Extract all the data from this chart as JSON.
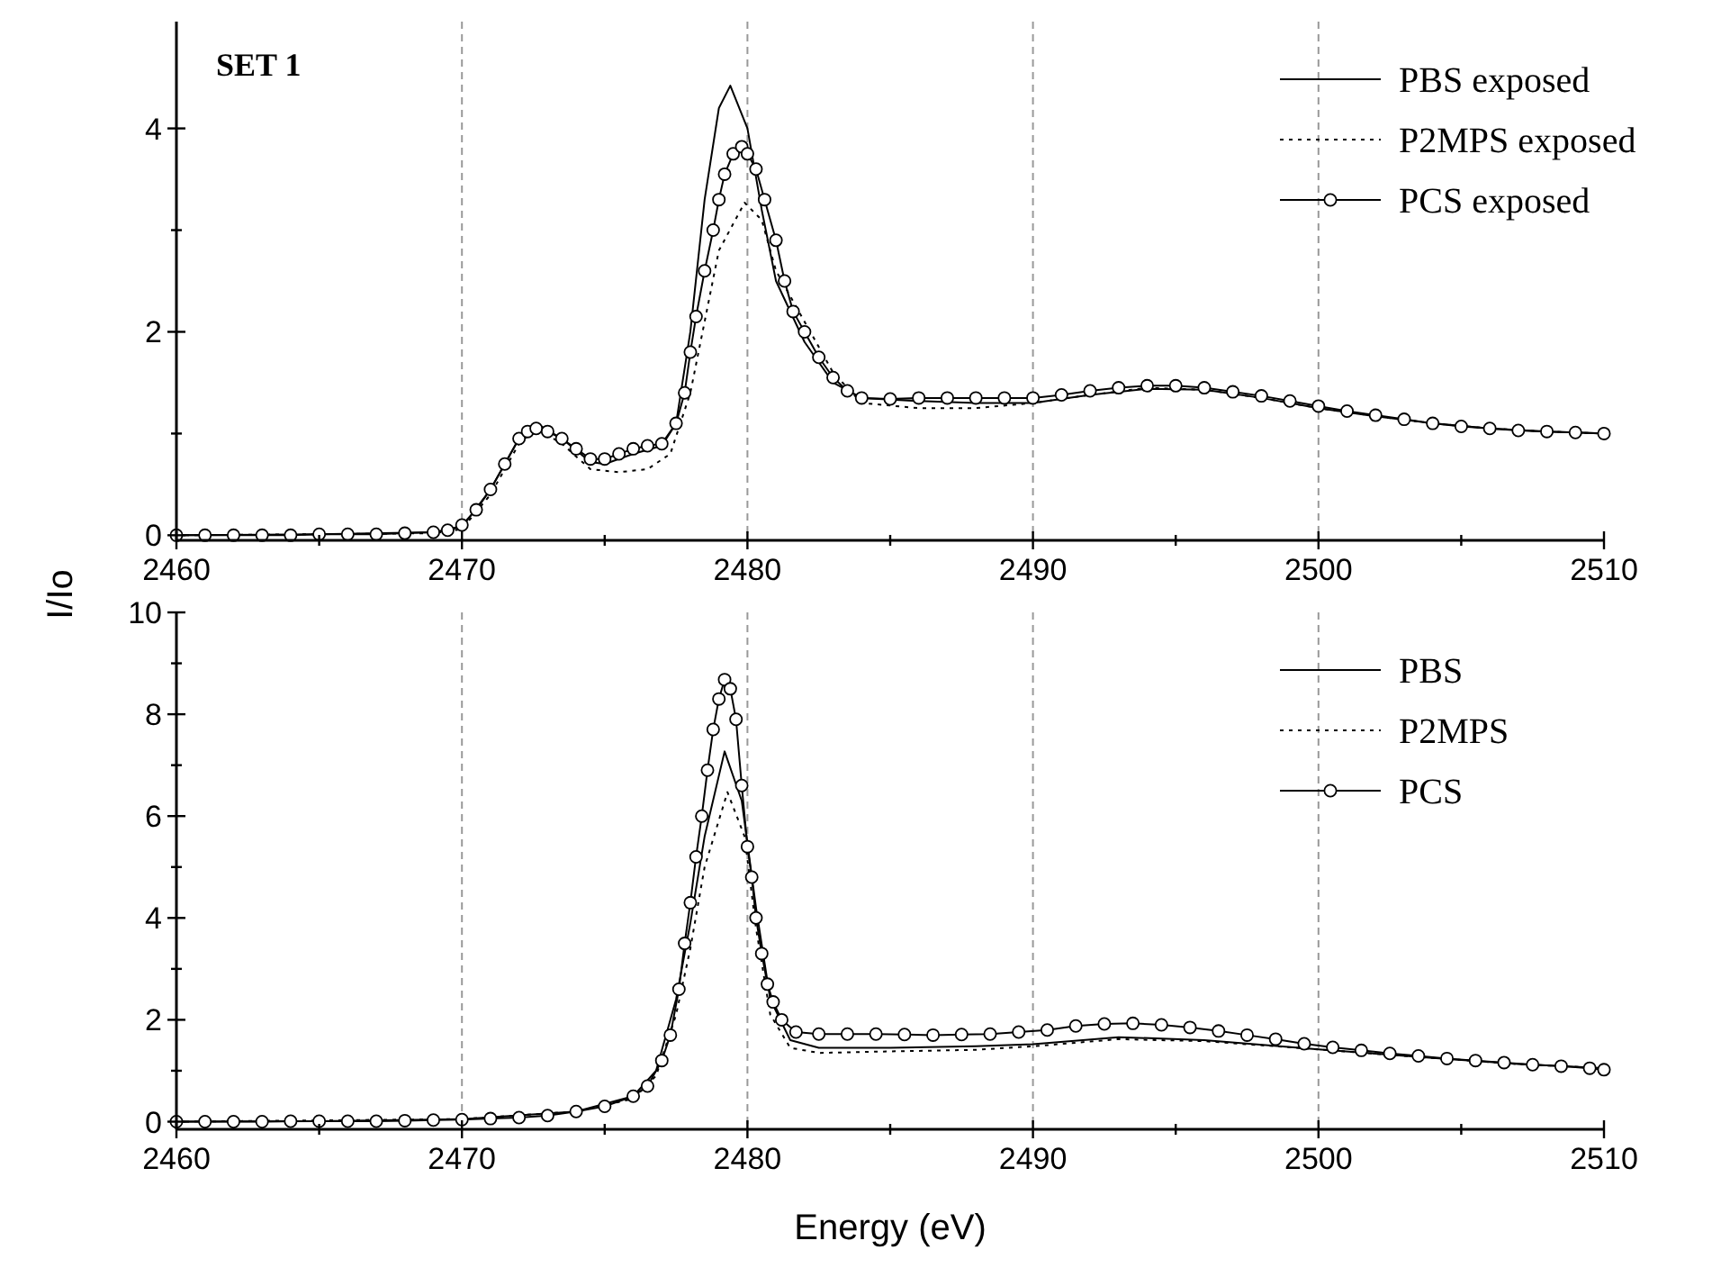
{
  "chart_data": [
    {
      "type": "line",
      "title": "SET 1",
      "xlim": [
        2460,
        2510
      ],
      "ylim": [
        -0.05,
        5.05
      ],
      "xticks": [
        2460,
        {
          "value": 2465,
          "label": null
        },
        2470,
        {
          "value": 2475,
          "label": null
        },
        2480,
        {
          "value": 2485,
          "label": null
        },
        2490,
        {
          "value": 2495,
          "label": null
        },
        2500,
        {
          "value": 2505,
          "label": null
        },
        2510
      ],
      "yticks": [
        0,
        {
          "value": 1,
          "label": null
        },
        2,
        {
          "value": 3,
          "label": null
        },
        4
      ],
      "grid": "x",
      "legend": "top right",
      "series": [
        {
          "name": "PBS exposed",
          "color": "#000000",
          "line_style": "solid",
          "marker": "none",
          "x": [
            2460,
            2465,
            2469,
            2470,
            2471,
            2472,
            2472.6,
            2473.5,
            2474.5,
            2475,
            2476,
            2477,
            2477.5,
            2478,
            2478.5,
            2479,
            2479.4,
            2480,
            2480.5,
            2481,
            2482,
            2483,
            2484,
            2486,
            2488,
            2490,
            2492,
            2494,
            2496,
            2498,
            2500,
            2502,
            2504,
            2506,
            2508,
            2510
          ],
          "values": [
            0,
            0.01,
            0.03,
            0.08,
            0.45,
            0.95,
            1.1,
            0.95,
            0.72,
            0.7,
            0.8,
            0.88,
            1.1,
            2.0,
            3.3,
            4.2,
            4.42,
            4.0,
            3.2,
            2.5,
            1.9,
            1.5,
            1.35,
            1.32,
            1.3,
            1.3,
            1.38,
            1.44,
            1.43,
            1.35,
            1.25,
            1.17,
            1.1,
            1.05,
            1.02,
            1.0
          ]
        },
        {
          "name": "P2MPS exposed",
          "color": "#000000",
          "line_style": "dotted",
          "marker": "none",
          "x": [
            2460,
            2465,
            2469,
            2470,
            2471,
            2472,
            2472.6,
            2473.5,
            2474.5,
            2475.5,
            2476.5,
            2477.3,
            2478,
            2478.5,
            2479,
            2479.9,
            2480.5,
            2481,
            2482,
            2483,
            2484,
            2486,
            2488,
            2490,
            2492,
            2494,
            2496,
            2498,
            2500,
            2502,
            2504,
            2506,
            2508,
            2510
          ],
          "values": [
            0,
            0.01,
            0.02,
            0.06,
            0.4,
            0.9,
            1.05,
            0.9,
            0.65,
            0.62,
            0.65,
            0.8,
            1.4,
            2.1,
            2.8,
            3.27,
            3.1,
            2.6,
            2.1,
            1.6,
            1.3,
            1.25,
            1.25,
            1.3,
            1.38,
            1.45,
            1.43,
            1.35,
            1.25,
            1.17,
            1.1,
            1.05,
            1.02,
            1.0
          ]
        },
        {
          "name": "PCS exposed",
          "color": "#000000",
          "line_style": "solid",
          "marker": "circle",
          "x": [
            2460,
            2461,
            2462,
            2463,
            2464,
            2465,
            2466,
            2467,
            2468,
            2469,
            2469.5,
            2470,
            2470.5,
            2471,
            2471.5,
            2472,
            2472.3,
            2472.6,
            2473,
            2473.5,
            2474,
            2474.5,
            2475,
            2475.5,
            2476,
            2476.5,
            2477,
            2477.5,
            2477.8,
            2478,
            2478.2,
            2478.5,
            2478.8,
            2479,
            2479.2,
            2479.5,
            2479.8,
            2480,
            2480.3,
            2480.6,
            2481,
            2481.3,
            2481.6,
            2482,
            2482.5,
            2483,
            2483.5,
            2484,
            2485,
            2486,
            2487,
            2488,
            2489,
            2490,
            2491,
            2492,
            2493,
            2494,
            2495,
            2496,
            2497,
            2498,
            2499,
            2500,
            2501,
            2502,
            2503,
            2504,
            2505,
            2506,
            2507,
            2508,
            2509,
            2510
          ],
          "values": [
            0,
            0,
            0,
            0,
            0,
            0.01,
            0.01,
            0.01,
            0.02,
            0.03,
            0.05,
            0.1,
            0.25,
            0.45,
            0.7,
            0.95,
            1.02,
            1.05,
            1.02,
            0.95,
            0.85,
            0.75,
            0.75,
            0.8,
            0.85,
            0.88,
            0.9,
            1.1,
            1.4,
            1.8,
            2.15,
            2.6,
            3.0,
            3.3,
            3.55,
            3.75,
            3.82,
            3.75,
            3.6,
            3.3,
            2.9,
            2.5,
            2.2,
            2.0,
            1.75,
            1.55,
            1.42,
            1.35,
            1.34,
            1.35,
            1.35,
            1.35,
            1.35,
            1.35,
            1.38,
            1.42,
            1.45,
            1.47,
            1.47,
            1.45,
            1.41,
            1.37,
            1.32,
            1.27,
            1.22,
            1.18,
            1.14,
            1.1,
            1.07,
            1.05,
            1.03,
            1.02,
            1.01,
            1.0
          ]
        }
      ]
    },
    {
      "type": "line",
      "xlabel": "Energy (eV)",
      "ylabel": "I/Io",
      "xlim": [
        2460,
        2510
      ],
      "ylim": [
        -0.15,
        10
      ],
      "xticks": [
        2460,
        {
          "value": 2465,
          "label": null
        },
        2470,
        {
          "value": 2475,
          "label": null
        },
        2480,
        {
          "value": 2485,
          "label": null
        },
        2490,
        {
          "value": 2495,
          "label": null
        },
        2500,
        {
          "value": 2505,
          "label": null
        },
        2510
      ],
      "yticks": [
        0,
        {
          "value": 1,
          "label": null
        },
        2,
        {
          "value": 3,
          "label": null
        },
        4,
        {
          "value": 5,
          "label": null
        },
        6,
        {
          "value": 7,
          "label": null
        },
        8,
        {
          "value": 9,
          "label": null
        },
        10
      ],
      "grid": "x",
      "legend": "top right",
      "series": [
        {
          "name": "PBS",
          "color": "#000000",
          "line_style": "solid",
          "marker": "none",
          "x": [
            2460,
            2465,
            2470,
            2474,
            2476,
            2476.8,
            2477.5,
            2478,
            2478.5,
            2479.2,
            2479.8,
            2480.3,
            2480.8,
            2481.5,
            2482.5,
            2485,
            2488,
            2490,
            2493,
            2496,
            2500,
            2504,
            2507,
            2510
          ],
          "values": [
            0,
            0.01,
            0.05,
            0.2,
            0.5,
            1.0,
            2.4,
            3.9,
            5.6,
            7.27,
            6.3,
            4.2,
            2.4,
            1.6,
            1.45,
            1.45,
            1.48,
            1.52,
            1.66,
            1.6,
            1.42,
            1.25,
            1.13,
            1.05
          ]
        },
        {
          "name": "P2MPS",
          "color": "#000000",
          "line_style": "dotted",
          "marker": "none",
          "x": [
            2460,
            2470,
            2474,
            2476,
            2476.8,
            2477.5,
            2478,
            2478.5,
            2479.3,
            2479.9,
            2480.3,
            2480.8,
            2481.5,
            2482.5,
            2485,
            2488,
            2490,
            2493,
            2496,
            2500,
            2504,
            2507,
            2510
          ],
          "values": [
            0,
            0.05,
            0.2,
            0.45,
            0.9,
            2.1,
            3.4,
            5.0,
            6.47,
            5.6,
            3.8,
            2.1,
            1.45,
            1.35,
            1.38,
            1.41,
            1.48,
            1.62,
            1.58,
            1.42,
            1.25,
            1.13,
            1.05
          ]
        },
        {
          "name": "PCS",
          "color": "#000000",
          "line_style": "solid",
          "marker": "circle",
          "x": [
            2460,
            2461,
            2462,
            2463,
            2464,
            2465,
            2466,
            2467,
            2468,
            2469,
            2470,
            2471,
            2472,
            2473,
            2474,
            2475,
            2476,
            2476.5,
            2477,
            2477.3,
            2477.6,
            2477.8,
            2478,
            2478.2,
            2478.4,
            2478.6,
            2478.8,
            2479,
            2479.2,
            2479.4,
            2479.6,
            2479.8,
            2480,
            2480.15,
            2480.3,
            2480.5,
            2480.7,
            2480.9,
            2481.2,
            2481.7,
            2482.5,
            2483.5,
            2484.5,
            2485.5,
            2486.5,
            2487.5,
            2488.5,
            2489.5,
            2490.5,
            2491.5,
            2492.5,
            2493.5,
            2494.5,
            2495.5,
            2496.5,
            2497.5,
            2498.5,
            2499.5,
            2500.5,
            2501.5,
            2502.5,
            2503.5,
            2504.5,
            2505.5,
            2506.5,
            2507.5,
            2508.5,
            2509.5,
            2510
          ],
          "values": [
            0,
            0,
            0,
            0,
            0.01,
            0.01,
            0.01,
            0.01,
            0.02,
            0.03,
            0.04,
            0.06,
            0.08,
            0.12,
            0.2,
            0.3,
            0.5,
            0.7,
            1.2,
            1.7,
            2.6,
            3.5,
            4.3,
            5.2,
            6.0,
            6.9,
            7.7,
            8.3,
            8.68,
            8.5,
            7.9,
            6.6,
            5.4,
            4.8,
            4.0,
            3.3,
            2.7,
            2.35,
            2.0,
            1.76,
            1.72,
            1.72,
            1.72,
            1.71,
            1.7,
            1.71,
            1.72,
            1.76,
            1.8,
            1.88,
            1.92,
            1.93,
            1.9,
            1.85,
            1.78,
            1.7,
            1.62,
            1.53,
            1.46,
            1.4,
            1.34,
            1.29,
            1.24,
            1.2,
            1.16,
            1.12,
            1.09,
            1.05,
            1.02
          ]
        }
      ]
    }
  ]
}
